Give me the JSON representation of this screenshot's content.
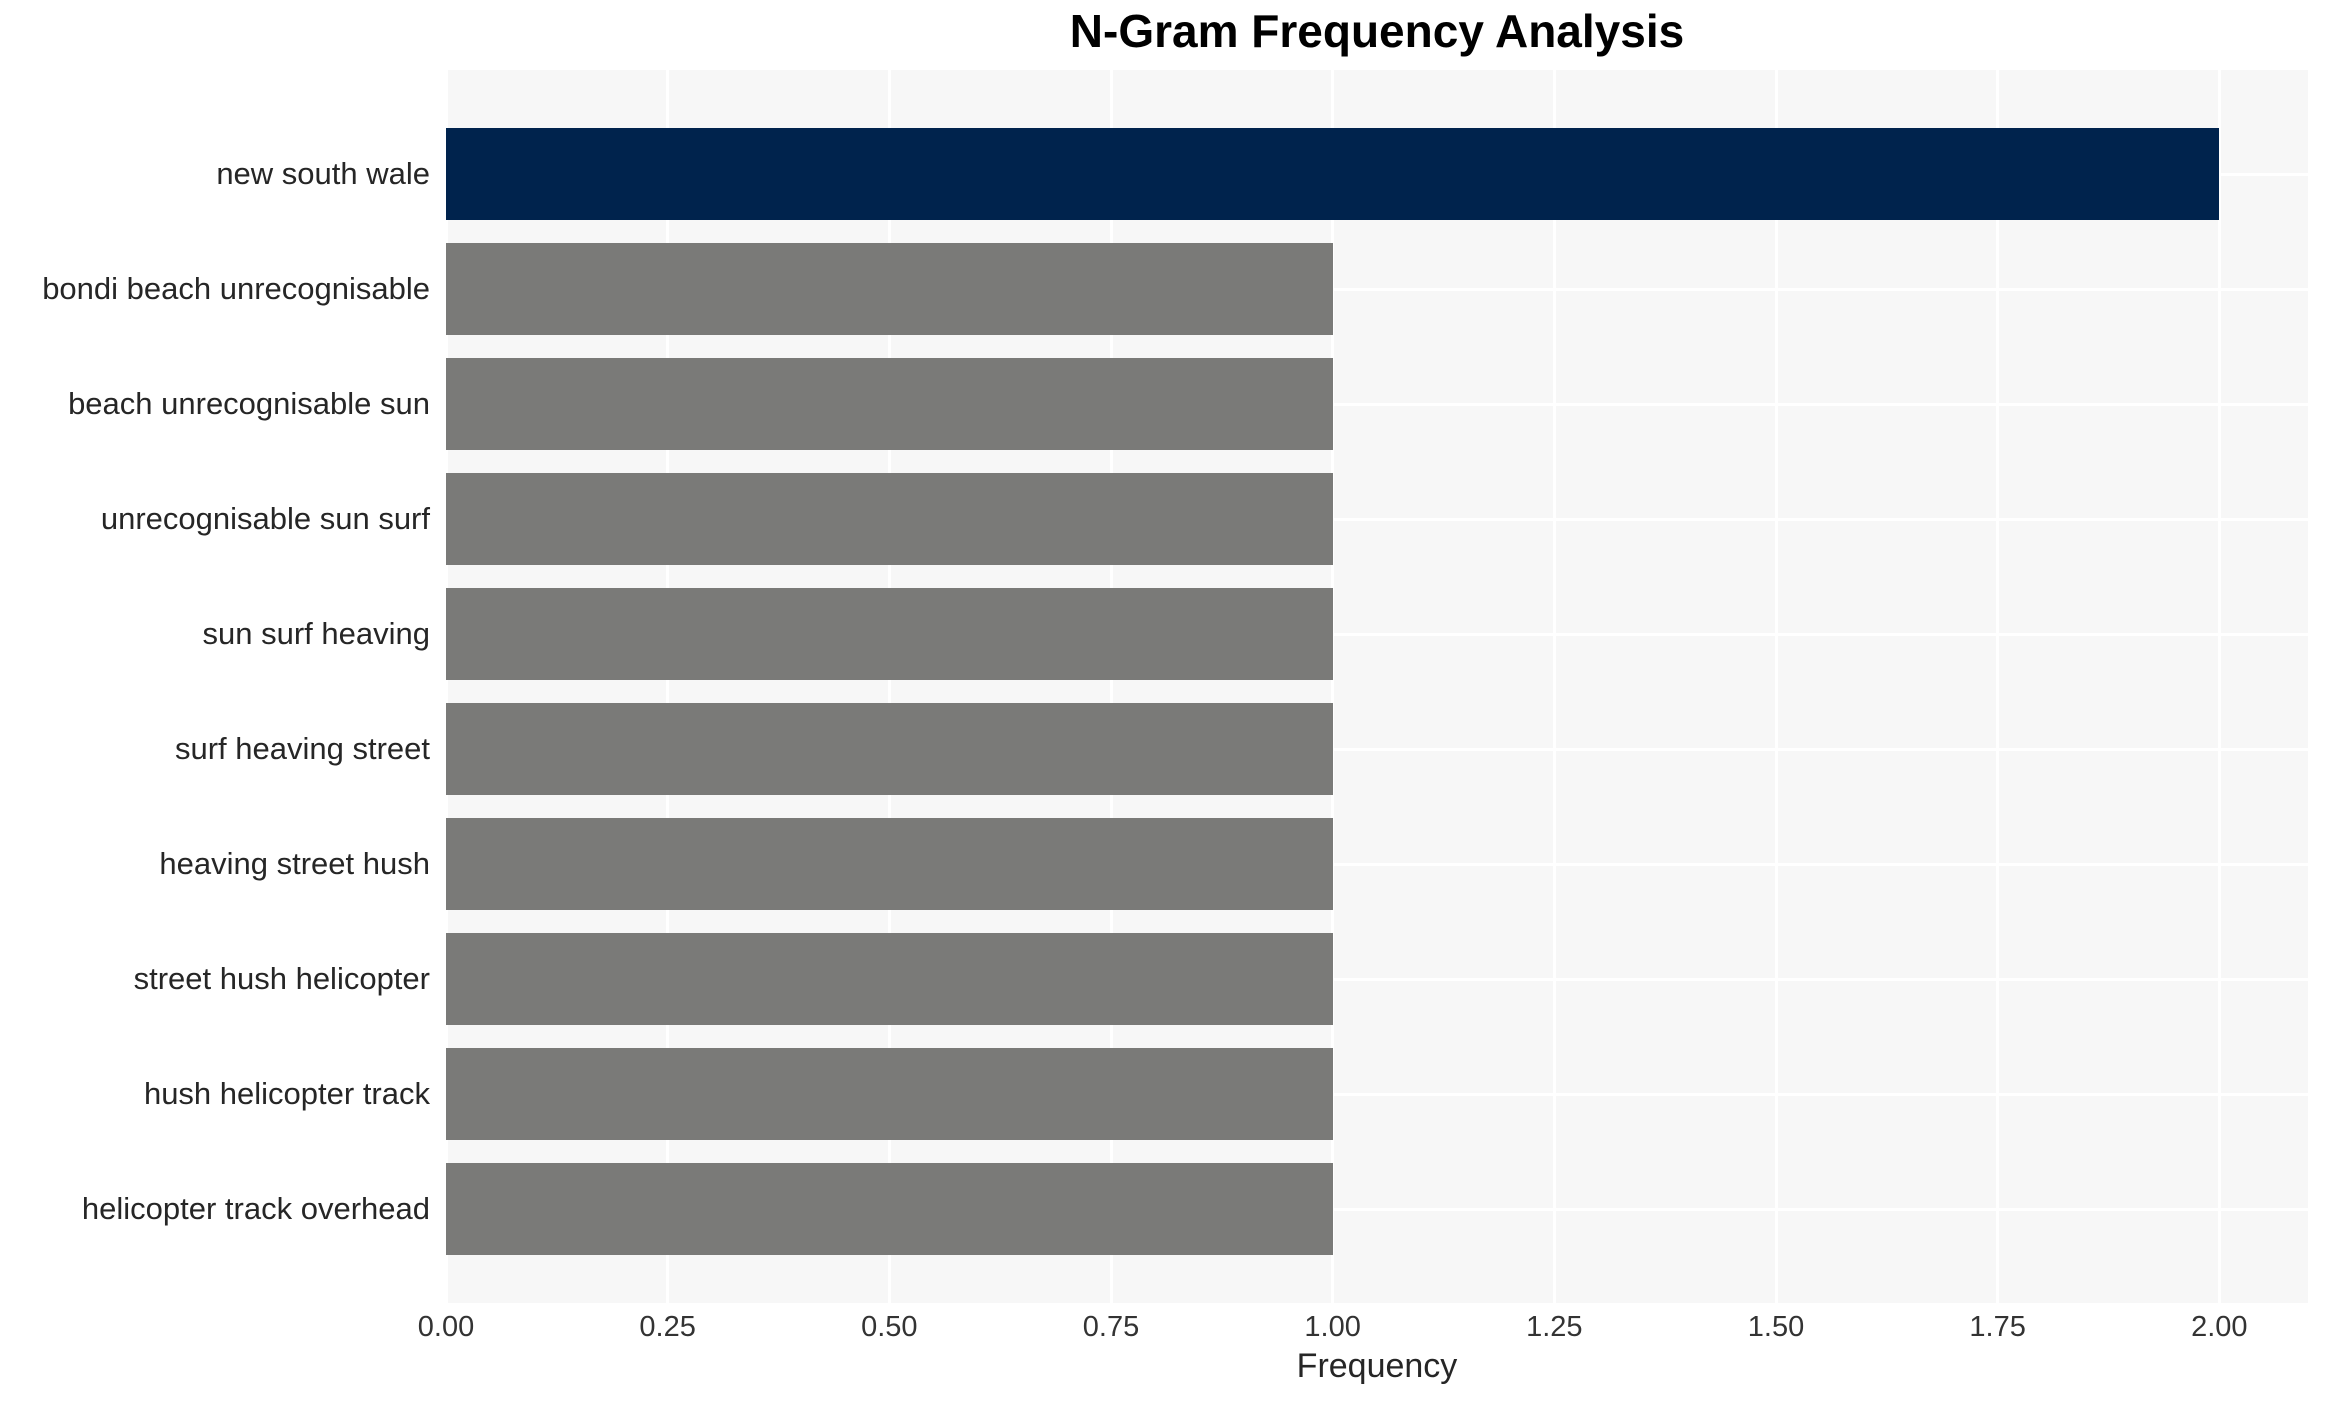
{
  "chart_data": {
    "type": "bar",
    "orientation": "horizontal",
    "title": "N-Gram Frequency Analysis",
    "xlabel": "Frequency",
    "ylabel": "",
    "categories": [
      "new south wale",
      "bondi beach unrecognisable",
      "beach unrecognisable sun",
      "unrecognisable sun surf",
      "sun surf heaving",
      "surf heaving street",
      "heaving street hush",
      "street hush helicopter",
      "hush helicopter track",
      "helicopter track overhead"
    ],
    "values": [
      2.0,
      1.0,
      1.0,
      1.0,
      1.0,
      1.0,
      1.0,
      1.0,
      1.0,
      1.0
    ],
    "bar_colors": [
      "#00234d",
      "#7a7a78",
      "#7a7a78",
      "#7a7a78",
      "#7a7a78",
      "#7a7a78",
      "#7a7a78",
      "#7a7a78",
      "#7a7a78",
      "#7a7a78"
    ],
    "xlim": [
      0,
      2.1
    ],
    "xticks": {
      "values": [
        0,
        0.25,
        0.5,
        0.75,
        1.0,
        1.25,
        1.5,
        1.75,
        2.0
      ],
      "labels": [
        "0.00",
        "0.25",
        "0.50",
        "0.75",
        "1.00",
        "1.25",
        "1.50",
        "1.75",
        "2.00"
      ]
    },
    "grid": "white vertical lines at x ticks and white horizontal lines at category centers, on light gray panel",
    "legend": "none",
    "colors": {
      "bar_highlight": "#00234d",
      "bar_default": "#7a7a78",
      "panel_background": "#f7f7f7",
      "gridline": "#ffffff",
      "title_text": "#000000",
      "label_text": "#262626",
      "tick_text": "#333333",
      "figure_background": "#ffffff"
    }
  }
}
